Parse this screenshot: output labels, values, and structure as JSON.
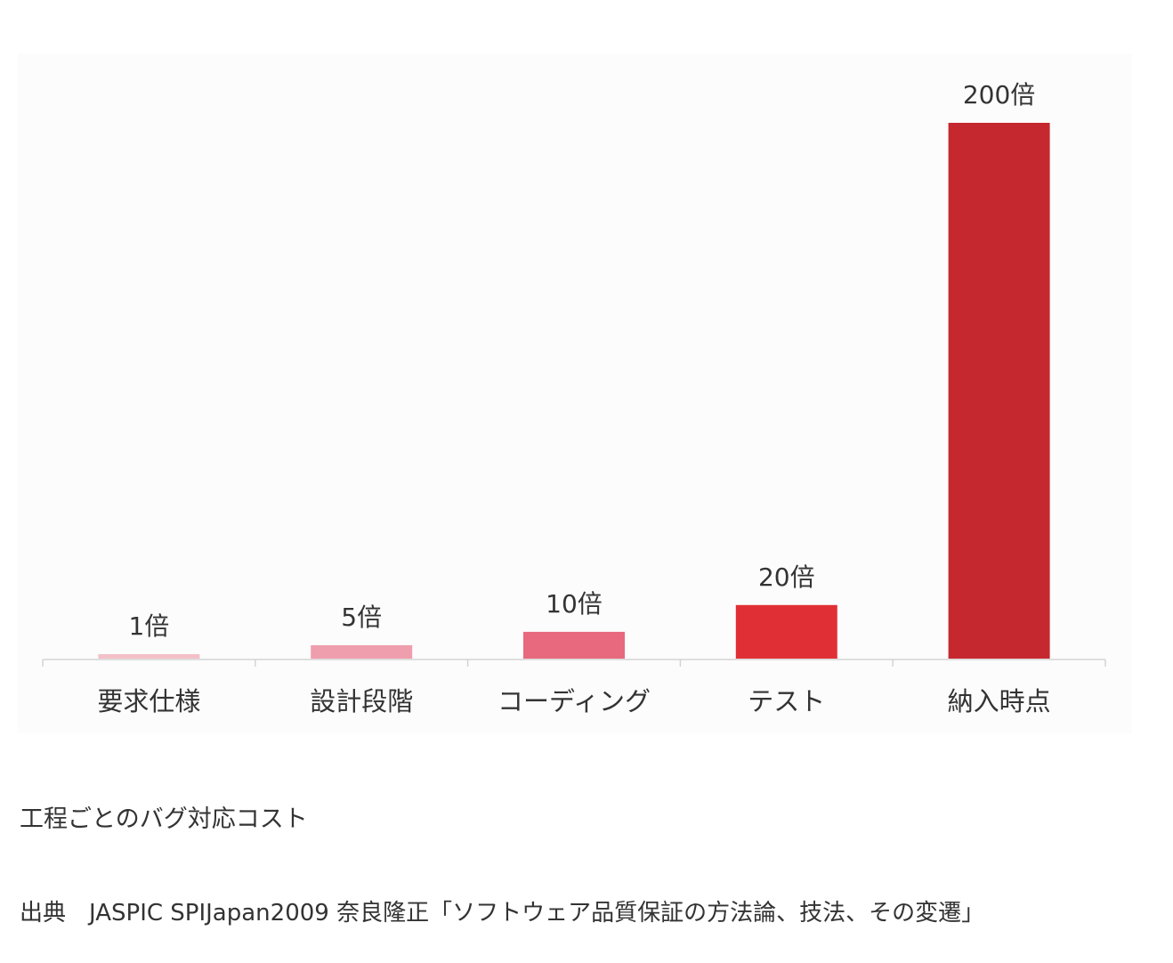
{
  "chart_data": {
    "type": "bar",
    "categories": [
      "要求仕様",
      "設計段階",
      "コーディング",
      "テスト",
      "納入時点"
    ],
    "values": [
      1,
      5,
      10,
      20,
      200
    ],
    "value_labels": [
      "1倍",
      "5倍",
      "10倍",
      "20倍",
      "200倍"
    ],
    "bar_colors": [
      "#f4c0c8",
      "#ee9eac",
      "#e8687e",
      "#e03036",
      "#c62830"
    ],
    "axis_color": "#d4d4d4",
    "title": "",
    "xlabel": "",
    "ylabel": "",
    "grid": false,
    "legend": "none"
  },
  "caption": "工程ごとのバグ対応コスト",
  "source": {
    "label": "出典",
    "text": "JASPIC SPIJapan2009 奈良隆正「ソフトウェア品質保証の方法論、技法、その変遷」"
  }
}
